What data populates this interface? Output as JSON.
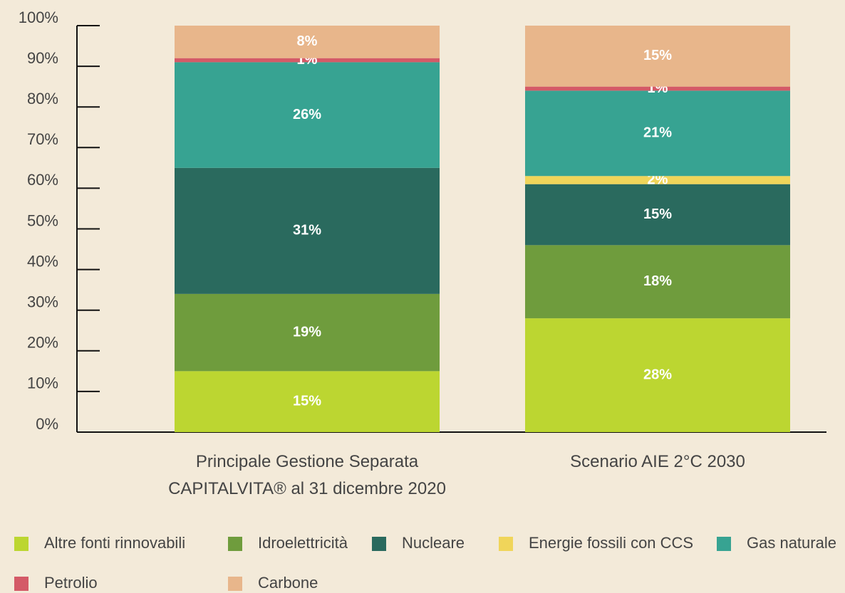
{
  "chart_data": {
    "type": "stacked_bar",
    "categories": [
      "Principale Gestione Separata CAPITALVITA® al 31 dicembre 2020",
      "Scenario AIE 2°C 2030"
    ],
    "series": [
      {
        "name": "Altre fonti rinnovabili",
        "color": "#bcd631",
        "values": [
          15,
          28
        ],
        "value_labels": [
          "15%",
          "28%"
        ]
      },
      {
        "name": "Idroelettricità",
        "color": "#6f9c3d",
        "values": [
          19,
          18
        ],
        "value_labels": [
          "19%",
          "18%"
        ]
      },
      {
        "name": "Nucleare",
        "color": "#2a6a5e",
        "values": [
          31,
          15
        ],
        "value_labels": [
          "31%",
          "15%"
        ]
      },
      {
        "name": "Energie fossili con CCS",
        "color": "#f0d55a",
        "values": [
          0,
          2
        ],
        "value_labels": [
          null,
          "2%"
        ]
      },
      {
        "name": "Gas naturale",
        "color": "#37a392",
        "values": [
          26,
          21
        ],
        "value_labels": [
          "26%",
          "21%"
        ]
      },
      {
        "name": "Petrolio",
        "color": "#d45a67",
        "values": [
          1,
          1
        ],
        "value_labels": [
          "1%",
          "1%"
        ]
      },
      {
        "name": "Carbone",
        "color": "#e8b68b",
        "values": [
          8,
          15
        ],
        "value_labels": [
          "8%",
          "15%"
        ]
      }
    ],
    "ylim": [
      0,
      100
    ],
    "yticks": [
      {
        "value": 0,
        "label": "0%"
      },
      {
        "value": 10,
        "label": "10%"
      },
      {
        "value": 20,
        "label": "20%"
      },
      {
        "value": 30,
        "label": "30%"
      },
      {
        "value": 40,
        "label": "40%"
      },
      {
        "value": 50,
        "label": "50%"
      },
      {
        "value": 60,
        "label": "60%"
      },
      {
        "value": 70,
        "label": "70%"
      },
      {
        "value": 80,
        "label": "80%"
      },
      {
        "value": 90,
        "label": "90%"
      },
      {
        "value": 100,
        "label": "100%"
      }
    ],
    "legend": "bottom"
  }
}
